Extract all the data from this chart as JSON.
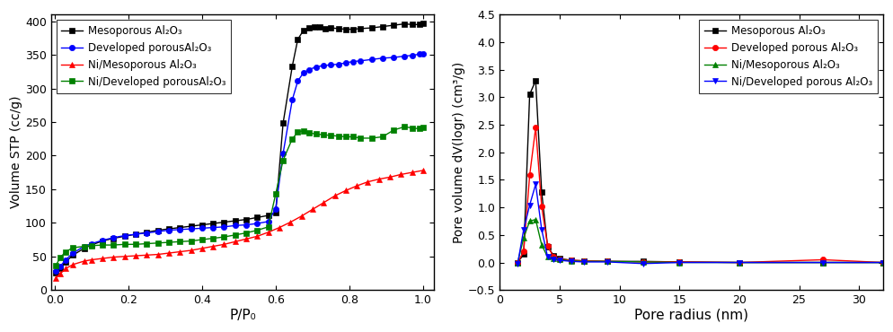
{
  "left": {
    "xlabel": "P/P₀",
    "ylabel": "Volume STP (cc/g)",
    "ylim": [
      0,
      410
    ],
    "xlim": [
      -0.01,
      1.03
    ],
    "yticks": [
      0,
      50,
      100,
      150,
      200,
      250,
      300,
      350,
      400
    ],
    "xticks": [
      0.0,
      0.2,
      0.4,
      0.6,
      0.8,
      1.0
    ],
    "series": [
      {
        "label": "Mesoporous Al₂O₃",
        "color": "black",
        "marker": "s",
        "x": [
          0.003,
          0.015,
          0.03,
          0.05,
          0.08,
          0.1,
          0.13,
          0.16,
          0.19,
          0.22,
          0.25,
          0.28,
          0.31,
          0.34,
          0.37,
          0.4,
          0.43,
          0.46,
          0.49,
          0.52,
          0.55,
          0.58,
          0.6,
          0.62,
          0.645,
          0.66,
          0.675,
          0.69,
          0.705,
          0.72,
          0.735,
          0.75,
          0.77,
          0.79,
          0.81,
          0.83,
          0.86,
          0.89,
          0.92,
          0.95,
          0.97,
          0.99,
          1.0
        ],
        "y": [
          26,
          32,
          42,
          52,
          62,
          67,
          73,
          77,
          80,
          83,
          86,
          89,
          91,
          93,
          95,
          97,
          99,
          101,
          103,
          105,
          108,
          111,
          115,
          248,
          333,
          373,
          386,
          390,
          392,
          391,
          389,
          390,
          389,
          388,
          388,
          389,
          390,
          392,
          394,
          396,
          395,
          395,
          397
        ]
      },
      {
        "label": "Developed porousAl₂O₃",
        "color": "blue",
        "marker": "o",
        "x": [
          0.003,
          0.015,
          0.03,
          0.05,
          0.08,
          0.1,
          0.13,
          0.16,
          0.19,
          0.22,
          0.25,
          0.28,
          0.31,
          0.34,
          0.37,
          0.4,
          0.43,
          0.46,
          0.49,
          0.52,
          0.55,
          0.58,
          0.6,
          0.62,
          0.645,
          0.66,
          0.675,
          0.69,
          0.71,
          0.73,
          0.75,
          0.77,
          0.79,
          0.81,
          0.83,
          0.86,
          0.89,
          0.92,
          0.95,
          0.97,
          0.99,
          1.0
        ],
        "y": [
          28,
          35,
          45,
          55,
          65,
          69,
          74,
          78,
          81,
          83,
          85,
          87,
          89,
          90,
          91,
          92,
          93,
          94,
          96,
          97,
          99,
          102,
          121,
          203,
          283,
          311,
          323,
          328,
          332,
          334,
          335,
          336,
          338,
          340,
          341,
          343,
          345,
          346,
          348,
          349,
          351,
          352
        ]
      },
      {
        "label": "Ni/Mesoporous Al₂O₃",
        "color": "red",
        "marker": "^",
        "x": [
          0.003,
          0.015,
          0.03,
          0.05,
          0.08,
          0.1,
          0.13,
          0.16,
          0.19,
          0.22,
          0.25,
          0.28,
          0.31,
          0.34,
          0.37,
          0.4,
          0.43,
          0.46,
          0.49,
          0.52,
          0.55,
          0.58,
          0.61,
          0.64,
          0.67,
          0.7,
          0.73,
          0.76,
          0.79,
          0.82,
          0.85,
          0.88,
          0.91,
          0.94,
          0.97,
          1.0
        ],
        "y": [
          18,
          24,
          32,
          38,
          43,
          45,
          47,
          49,
          50,
          51,
          52,
          53,
          55,
          57,
          59,
          62,
          65,
          68,
          72,
          76,
          80,
          86,
          93,
          101,
          110,
          120,
          130,
          140,
          148,
          155,
          161,
          165,
          168,
          172,
          175,
          178
        ]
      },
      {
        "label": "Ni/Developed porousAl₂O₃",
        "color": "green",
        "marker": "s",
        "x": [
          0.003,
          0.015,
          0.03,
          0.05,
          0.08,
          0.1,
          0.13,
          0.16,
          0.19,
          0.22,
          0.25,
          0.28,
          0.31,
          0.34,
          0.37,
          0.4,
          0.43,
          0.46,
          0.49,
          0.52,
          0.55,
          0.58,
          0.6,
          0.62,
          0.645,
          0.66,
          0.675,
          0.69,
          0.71,
          0.73,
          0.75,
          0.77,
          0.79,
          0.81,
          0.83,
          0.86,
          0.89,
          0.92,
          0.95,
          0.97,
          0.99,
          1.0
        ],
        "y": [
          36,
          48,
          57,
          63,
          65,
          66,
          67,
          67,
          68,
          68,
          69,
          70,
          71,
          72,
          73,
          75,
          77,
          79,
          82,
          85,
          89,
          94,
          143,
          193,
          225,
          235,
          237,
          234,
          232,
          231,
          230,
          229,
          228,
          228,
          226,
          226,
          228,
          238,
          243,
          241,
          240,
          242
        ]
      }
    ]
  },
  "right": {
    "xlabel": "Pore radius (nm)",
    "ylabel": "Pore volume dV(logr) (cm³/g)",
    "ylim": [
      -0.5,
      4.5
    ],
    "xlim": [
      0,
      32
    ],
    "yticks": [
      -0.5,
      0.0,
      0.5,
      1.0,
      1.5,
      2.0,
      2.5,
      3.0,
      3.5,
      4.0,
      4.5
    ],
    "xticks": [
      0,
      5,
      10,
      15,
      20,
      25,
      30
    ],
    "series": [
      {
        "label": "Mesoporous Al₂O₃",
        "color": "black",
        "marker": "s",
        "x": [
          1.5,
          2.0,
          2.5,
          3.0,
          3.5,
          4.0,
          4.5,
          5.0,
          6.0,
          7.0,
          9.0,
          12.0,
          15.0,
          20.0,
          27.0,
          32.0
        ],
        "y": [
          0.0,
          0.15,
          3.05,
          3.3,
          1.28,
          0.28,
          0.13,
          0.07,
          0.04,
          0.03,
          0.02,
          0.02,
          0.01,
          0.0,
          0.0,
          0.0
        ]
      },
      {
        "label": "Developed porous Al₂O₃",
        "color": "red",
        "marker": "o",
        "x": [
          1.5,
          2.0,
          2.5,
          3.0,
          3.5,
          4.0,
          4.5,
          5.0,
          6.0,
          7.0,
          9.0,
          12.0,
          15.0,
          20.0,
          27.0,
          32.0
        ],
        "y": [
          0.0,
          0.2,
          1.58,
          2.45,
          1.02,
          0.3,
          0.1,
          0.06,
          0.04,
          0.03,
          0.02,
          0.01,
          0.01,
          0.0,
          0.05,
          0.0
        ]
      },
      {
        "label": "Ni/Mesoporous Al₂O₃",
        "color": "green",
        "marker": "^",
        "x": [
          1.5,
          2.0,
          2.5,
          3.0,
          3.5,
          4.0,
          4.5,
          5.0,
          6.0,
          7.0,
          9.0,
          12.0,
          15.0,
          20.0,
          27.0,
          32.0
        ],
        "y": [
          0.0,
          0.45,
          0.75,
          0.78,
          0.32,
          0.1,
          0.07,
          0.05,
          0.03,
          0.02,
          0.02,
          0.01,
          0.0,
          0.0,
          0.0,
          0.0
        ]
      },
      {
        "label": "Ni/Developed porous Al₂O₃",
        "color": "blue",
        "marker": "v",
        "x": [
          1.5,
          2.0,
          2.5,
          3.0,
          3.5,
          4.0,
          4.5,
          5.0,
          6.0,
          7.0,
          9.0,
          12.0,
          15.0,
          20.0,
          27.0,
          32.0
        ],
        "y": [
          -0.02,
          0.6,
          1.04,
          1.42,
          0.6,
          0.1,
          0.05,
          0.04,
          0.02,
          0.01,
          0.01,
          -0.02,
          0.0,
          0.0,
          0.0,
          0.0
        ]
      }
    ]
  }
}
